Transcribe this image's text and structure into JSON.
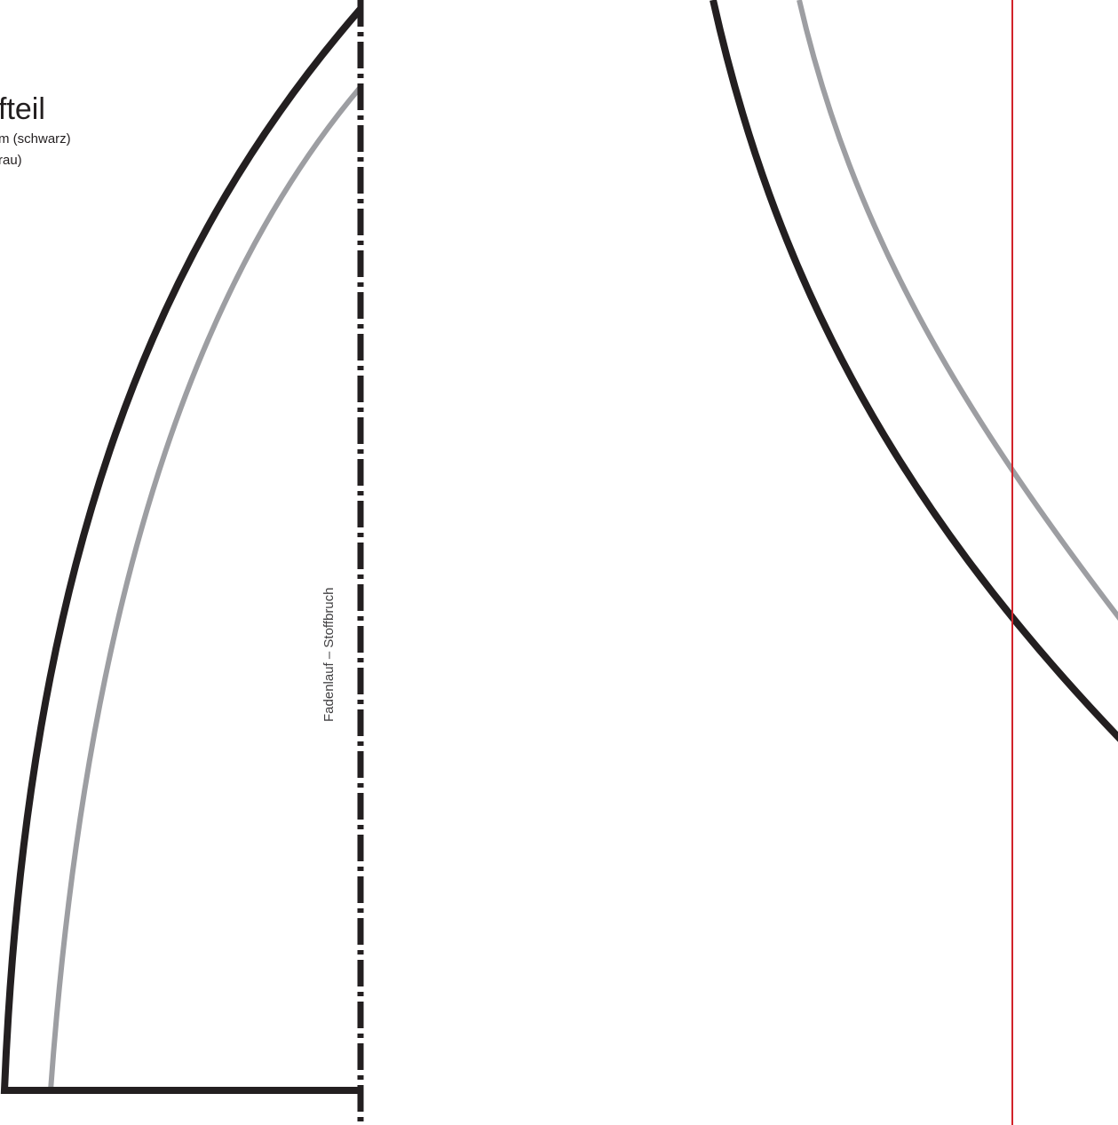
{
  "piece": {
    "title": "fteil",
    "legend_line_1": "m (schwarz)",
    "legend_line_2": "rau)"
  },
  "grainline": {
    "label": "Fadenlauf – Stoffbruch"
  },
  "colors": {
    "cutting_line": "#231f20",
    "seam_line": "#9d9ea2",
    "page_border": "#d2232a",
    "background": "#ffffff"
  }
}
